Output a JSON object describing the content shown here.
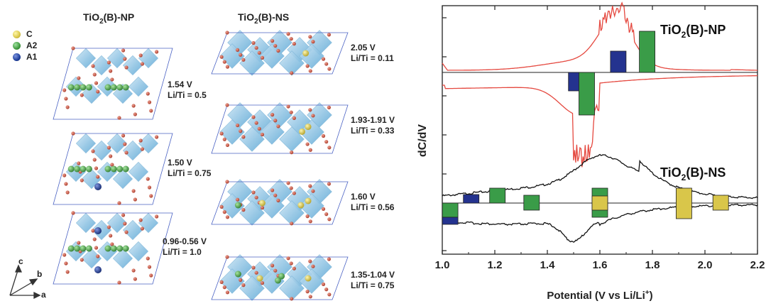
{
  "left": {
    "np_title": "TiO",
    "np_title_sub": "2",
    "np_title_rest": "(B)-NP",
    "ns_title": "TiO",
    "ns_title_sub": "2",
    "ns_title_rest": "(B)-NS",
    "legend": [
      {
        "label": "C",
        "color": "#e3d440"
      },
      {
        "label": "A2",
        "color": "#3f9a3f"
      },
      {
        "label": "A1",
        "color": "#1f3f9c"
      }
    ],
    "np_labels": [
      {
        "v": "1.54 V",
        "r": "Li/Ti = 0.5"
      },
      {
        "v": "1.50 V",
        "r": "Li/Ti = 0.75"
      },
      {
        "v": "0.96-0.56 V",
        "r": "Li/Ti = 1.0"
      }
    ],
    "ns_labels": [
      {
        "v": "2.05 V",
        "r": "Li/Ti = 0.11"
      },
      {
        "v": "1.93-1.91 V",
        "r": "Li/Ti = 0.33"
      },
      {
        "v": "1.60 V",
        "r": "Li/Ti = 0.56"
      },
      {
        "v": "1.35-1.04 V",
        "r": "Li/Ti = 0.75"
      }
    ],
    "axes": {
      "c": "c",
      "b": "b",
      "a": "a"
    }
  },
  "chart_data": {
    "type": "line",
    "xlabel": "Potential (V vs Li/Li",
    "xlabel_sup": "+",
    "xlabel_end": ")",
    "ylabel": "dC/dV",
    "xlim": [
      1.0,
      2.2
    ],
    "x_ticks": [
      "1.0",
      "1.2",
      "1.4",
      "1.6",
      "1.8",
      "2.0",
      "2.2"
    ],
    "series": [
      {
        "label_main": "TiO",
        "label_sub": "2",
        "label_rest": "(B)-NP",
        "color": "#e5483f"
      },
      {
        "label_main": "TiO",
        "label_sub": "2",
        "label_rest": "(B)-NS",
        "color": "#111111"
      }
    ],
    "site_colors": {
      "C": "#d9c64a",
      "A2": "#3a9c48",
      "A1": "#24338f"
    }
  }
}
